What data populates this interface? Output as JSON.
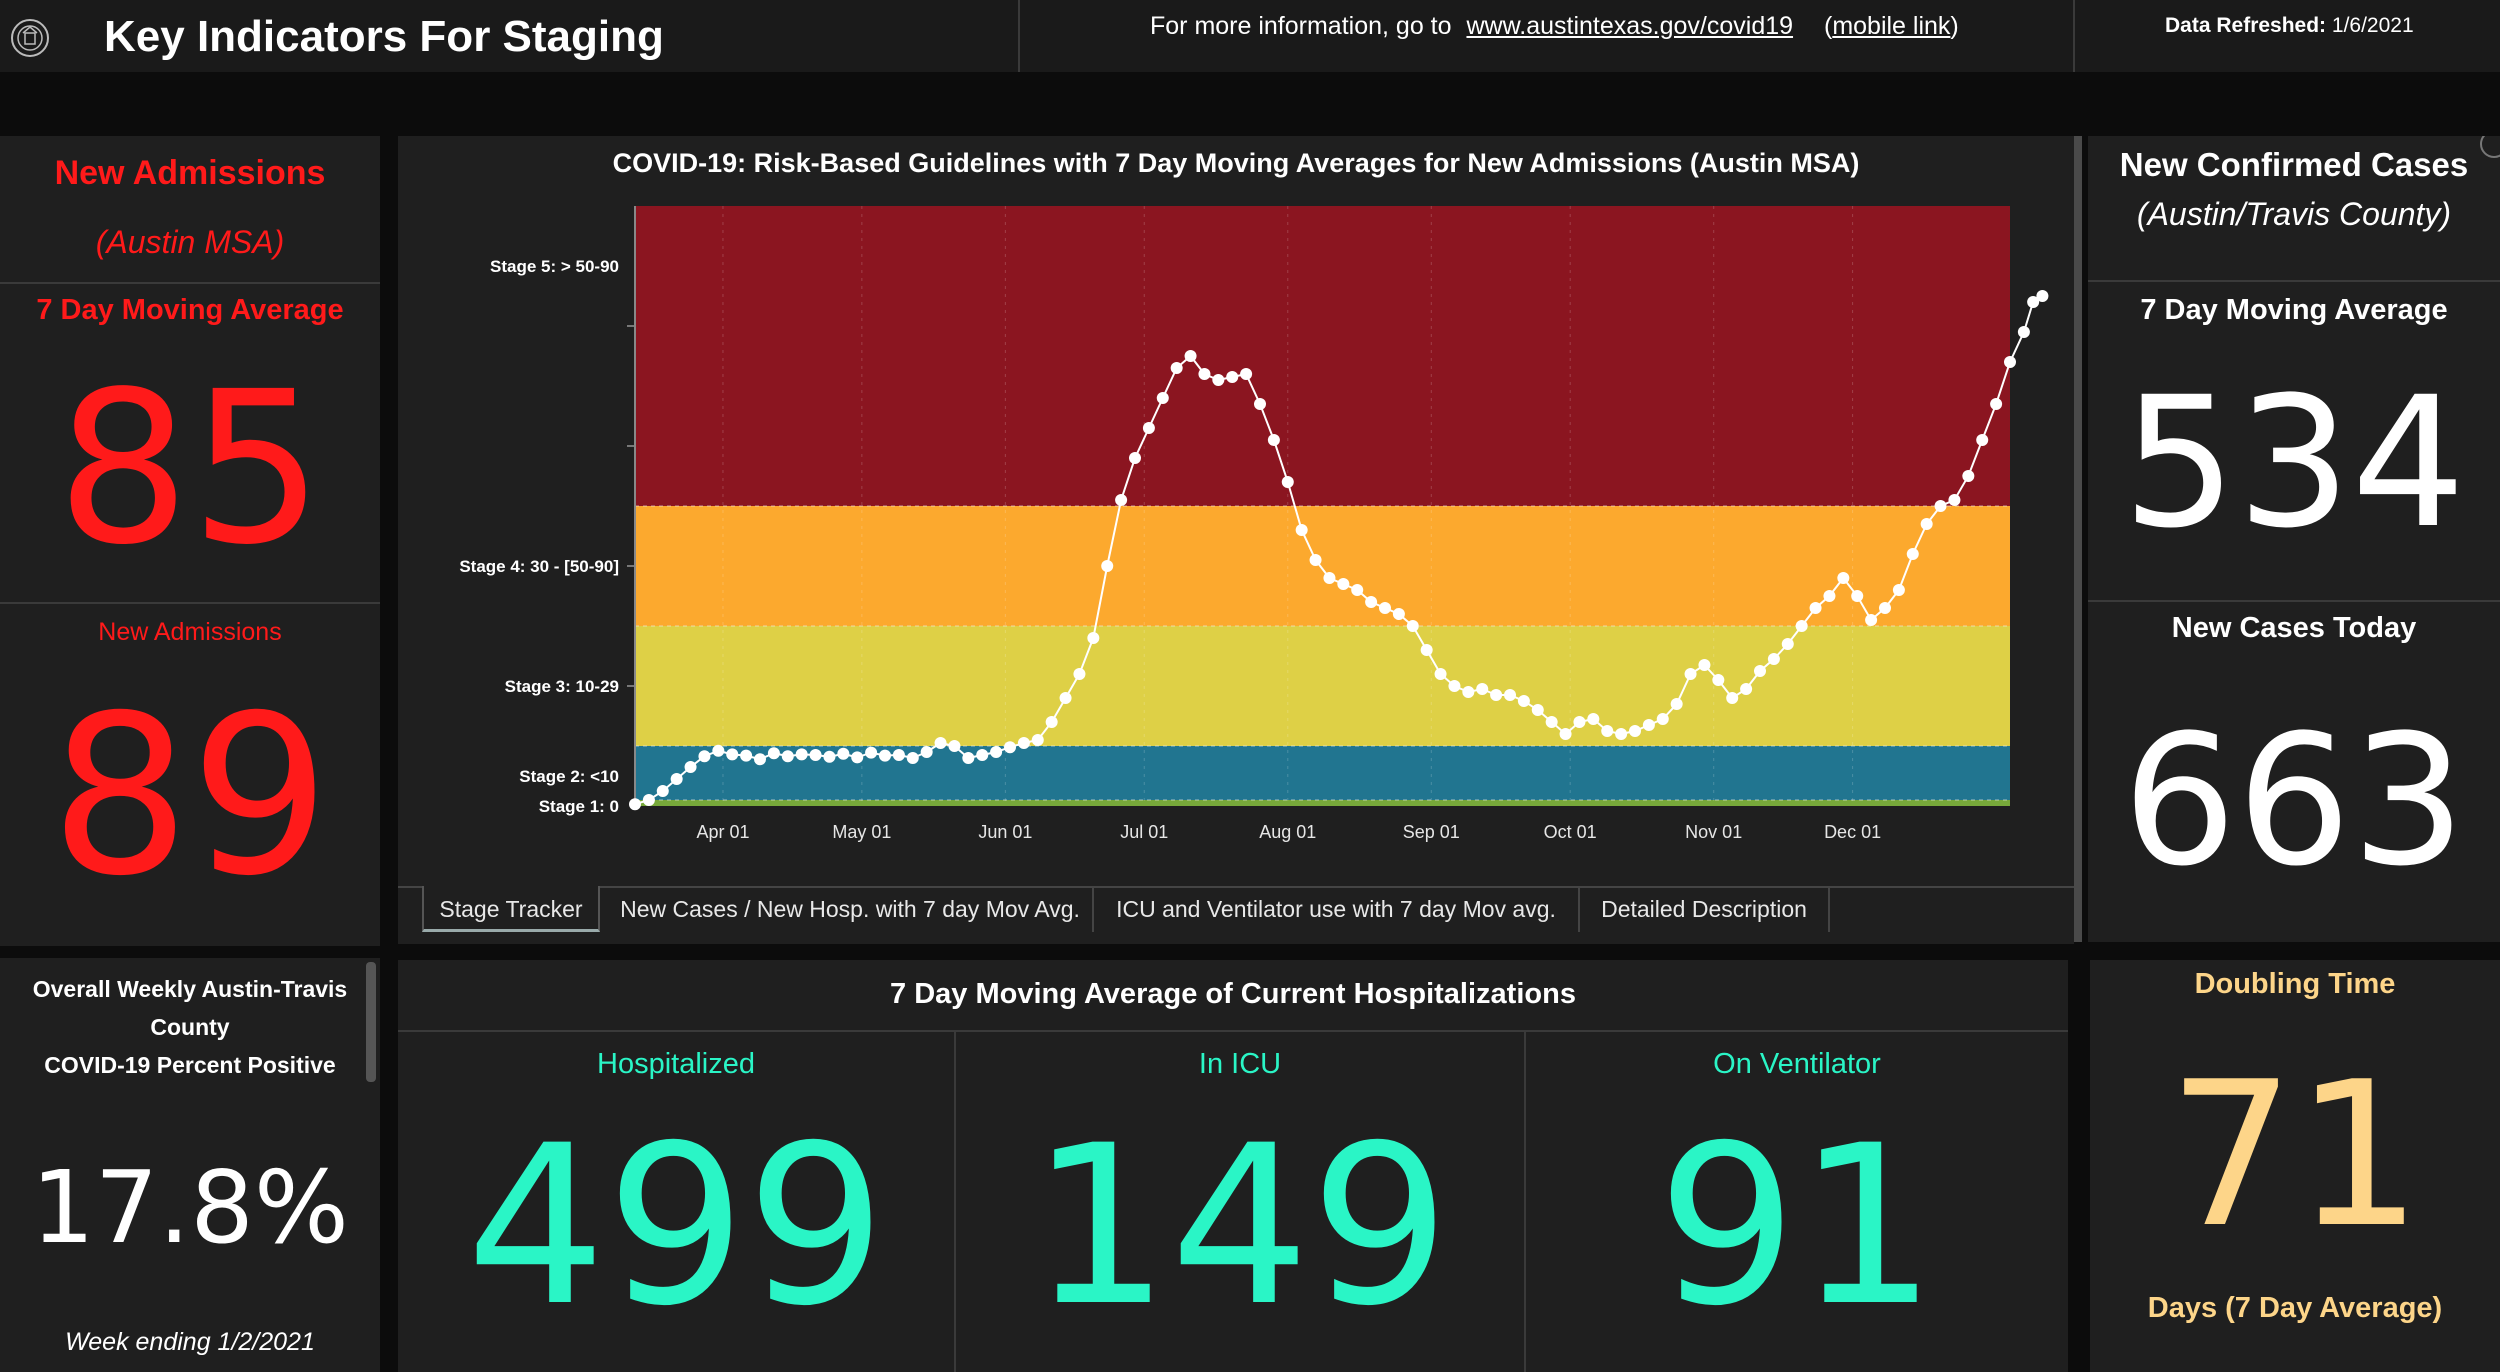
{
  "header": {
    "title": "Key Indicators For Staging",
    "info_prefix": "For more information, go to",
    "info_link": "www.austintexas.gov/covid19",
    "mobile_open": "(",
    "mobile_link": "mobile link",
    "mobile_close": ")",
    "refreshed_label": "Data Refreshed:",
    "refreshed_value": "1/6/2021"
  },
  "admissions": {
    "title": "New Admissions",
    "subtitle": "(Austin MSA)",
    "avg_label": "7 Day Moving Average",
    "avg_value": "85",
    "today_label": "New Admissions",
    "today_value": "89",
    "color": "#ff1a1a"
  },
  "percent_positive": {
    "title_line1": "Overall  Weekly Austin-Travis",
    "title_line2": "County",
    "title_line3": "COVID-19 Percent Positive",
    "value": "17.8%",
    "week_ending": "Week ending 1/2/2021"
  },
  "cases": {
    "title": "New Confirmed Cases",
    "subtitle": "(Austin/Travis County)",
    "avg_label": "7 Day Moving Average",
    "avg_value": "534",
    "today_label": "New Cases Today",
    "today_value": "663"
  },
  "hospitalizations": {
    "title": "7 Day Moving Average of Current Hospitalizations",
    "color": "#2af5c6",
    "items": [
      {
        "label": "Hospitalized",
        "value": "499"
      },
      {
        "label": "In ICU",
        "value": "149"
      },
      {
        "label": "On Ventilator",
        "value": "91"
      }
    ]
  },
  "doubling": {
    "title": "Doubling Time",
    "value": "71",
    "unit": "Days (7 Day Average)",
    "color": "#fdd589"
  },
  "tabs": [
    {
      "label": "Stage Tracker",
      "active": true
    },
    {
      "label": "New Cases / New Hosp. with 7 day Mov Avg.",
      "active": false
    },
    {
      "label": "ICU and Ventilator use with 7 day Mov avg.",
      "active": false
    },
    {
      "label": "Detailed Description",
      "active": false
    }
  ],
  "chart_data": {
    "type": "scatter",
    "title": "COVID-19: Risk-Based Guidelines with 7 Day Moving Averages for New Admissions (Austin MSA)",
    "xlabel": "",
    "ylabel": "",
    "x_start": "2020-03-13",
    "x_end": "2021-01-04",
    "x_ticks": [
      "2020-04-01",
      "2020-05-01",
      "2020-06-01",
      "2020-07-01",
      "2020-08-01",
      "2020-09-01",
      "2020-10-01",
      "2020-11-01",
      "2020-12-01"
    ],
    "x_tick_labels": [
      "Apr 01",
      "May 01",
      "Jun 01",
      "Jul 01",
      "Aug 01",
      "Sep 01",
      "Oct 01",
      "Nov 01",
      "Dec 01"
    ],
    "ylim": [
      0,
      100
    ],
    "grid": true,
    "stage_labels": [
      {
        "label": "Stage 5: > 50-90",
        "y": 90
      },
      {
        "label": "Stage 4: 30 - [50-90]",
        "y": 40
      },
      {
        "label": "Stage 3: 10-29",
        "y": 20
      },
      {
        "label": "Stage 2: <10",
        "y": 5
      },
      {
        "label": "Stage 1: 0",
        "y": 0
      }
    ],
    "bands": [
      {
        "from": 0,
        "to": 1,
        "color": "#77a83a"
      },
      {
        "from": 1,
        "to": 10,
        "color": "#217590"
      },
      {
        "from": 10,
        "to": 30,
        "color": "#ded046"
      },
      {
        "from": 30,
        "to": 50,
        "color": "#fca92e"
      },
      {
        "from": 50,
        "to": 100,
        "color": "#8b1520"
      }
    ],
    "series": [
      {
        "points": [
          [
            "2020-03-13",
            0.3
          ],
          [
            "2020-03-16",
            1
          ],
          [
            "2020-03-19",
            2.5
          ],
          [
            "2020-03-22",
            4.5
          ],
          [
            "2020-03-25",
            6.5
          ],
          [
            "2020-03-28",
            8.3
          ],
          [
            "2020-03-31",
            9.2
          ],
          [
            "2020-04-03",
            8.6
          ],
          [
            "2020-04-06",
            8.4
          ],
          [
            "2020-04-09",
            7.8
          ],
          [
            "2020-04-12",
            8.8
          ],
          [
            "2020-04-15",
            8.3
          ],
          [
            "2020-04-18",
            8.6
          ],
          [
            "2020-04-21",
            8.5
          ],
          [
            "2020-04-24",
            8.2
          ],
          [
            "2020-04-27",
            8.7
          ],
          [
            "2020-04-30",
            8.1
          ],
          [
            "2020-05-03",
            8.9
          ],
          [
            "2020-05-06",
            8.4
          ],
          [
            "2020-05-09",
            8.5
          ],
          [
            "2020-05-12",
            8.0
          ],
          [
            "2020-05-15",
            9.0
          ],
          [
            "2020-05-18",
            10.5
          ],
          [
            "2020-05-21",
            10.0
          ],
          [
            "2020-05-24",
            8.0
          ],
          [
            "2020-05-27",
            8.5
          ],
          [
            "2020-05-30",
            9.0
          ],
          [
            "2020-06-02",
            9.8
          ],
          [
            "2020-06-05",
            10.5
          ],
          [
            "2020-06-08",
            11.0
          ],
          [
            "2020-06-11",
            14.0
          ],
          [
            "2020-06-14",
            18.0
          ],
          [
            "2020-06-17",
            22.0
          ],
          [
            "2020-06-20",
            28.0
          ],
          [
            "2020-06-23",
            40.0
          ],
          [
            "2020-06-26",
            51.0
          ],
          [
            "2020-06-29",
            58.0
          ],
          [
            "2020-07-02",
            63.0
          ],
          [
            "2020-07-05",
            68.0
          ],
          [
            "2020-07-08",
            73.0
          ],
          [
            "2020-07-11",
            75.0
          ],
          [
            "2020-07-14",
            72.0
          ],
          [
            "2020-07-17",
            71.0
          ],
          [
            "2020-07-20",
            71.5
          ],
          [
            "2020-07-23",
            72.0
          ],
          [
            "2020-07-26",
            67.0
          ],
          [
            "2020-07-29",
            61.0
          ],
          [
            "2020-08-01",
            54.0
          ],
          [
            "2020-08-04",
            46.0
          ],
          [
            "2020-08-07",
            41.0
          ],
          [
            "2020-08-10",
            38.0
          ],
          [
            "2020-08-13",
            37.0
          ],
          [
            "2020-08-16",
            36.0
          ],
          [
            "2020-08-19",
            34.0
          ],
          [
            "2020-08-22",
            33.0
          ],
          [
            "2020-08-25",
            32.0
          ],
          [
            "2020-08-28",
            30.0
          ],
          [
            "2020-08-31",
            26.0
          ],
          [
            "2020-09-03",
            22.0
          ],
          [
            "2020-09-06",
            20.0
          ],
          [
            "2020-09-09",
            19.0
          ],
          [
            "2020-09-12",
            19.5
          ],
          [
            "2020-09-15",
            18.5
          ],
          [
            "2020-09-18",
            18.5
          ],
          [
            "2020-09-21",
            17.5
          ],
          [
            "2020-09-24",
            16.0
          ],
          [
            "2020-09-27",
            14.0
          ],
          [
            "2020-09-30",
            12.0
          ],
          [
            "2020-10-03",
            14.0
          ],
          [
            "2020-10-06",
            14.5
          ],
          [
            "2020-10-09",
            12.5
          ],
          [
            "2020-10-12",
            12.0
          ],
          [
            "2020-10-15",
            12.5
          ],
          [
            "2020-10-18",
            13.5
          ],
          [
            "2020-10-21",
            14.5
          ],
          [
            "2020-10-24",
            17.0
          ],
          [
            "2020-10-27",
            22.0
          ],
          [
            "2020-10-30",
            23.5
          ],
          [
            "2020-11-02",
            21.0
          ],
          [
            "2020-11-05",
            18.0
          ],
          [
            "2020-11-08",
            19.5
          ],
          [
            "2020-11-11",
            22.5
          ],
          [
            "2020-11-14",
            24.5
          ],
          [
            "2020-11-17",
            27.0
          ],
          [
            "2020-11-20",
            30.0
          ],
          [
            "2020-11-23",
            33.0
          ],
          [
            "2020-11-26",
            35.0
          ],
          [
            "2020-11-29",
            38.0
          ],
          [
            "2020-12-02",
            35.0
          ],
          [
            "2020-12-05",
            31.0
          ],
          [
            "2020-12-08",
            33.0
          ],
          [
            "2020-12-11",
            36.0
          ],
          [
            "2020-12-14",
            42.0
          ],
          [
            "2020-12-17",
            47.0
          ],
          [
            "2020-12-20",
            50.0
          ],
          [
            "2020-12-23",
            51.0
          ],
          [
            "2020-12-26",
            55.0
          ],
          [
            "2020-12-29",
            61.0
          ],
          [
            "2021-01-01",
            67.0
          ],
          [
            "2021-01-04",
            74.0
          ],
          [
            "2021-01-07",
            79.0
          ],
          [
            "2021-01-09",
            84.0
          ],
          [
            "2021-01-11",
            85.0
          ]
        ]
      }
    ]
  }
}
